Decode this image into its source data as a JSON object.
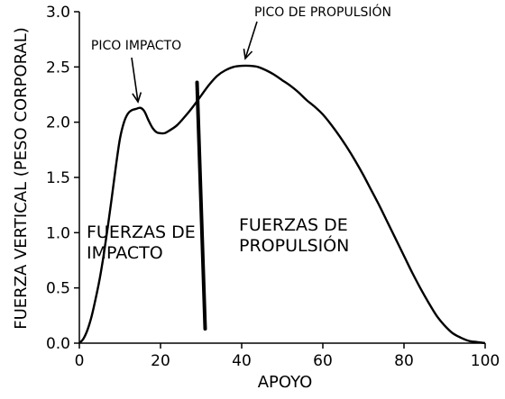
{
  "chart_data": {
    "type": "line",
    "xlabel": "APOYO",
    "ylabel": "FUERZA VERTICAL (PESO CORPORAL)",
    "xlim": [
      0,
      100
    ],
    "ylim": [
      0,
      3.0
    ],
    "x_ticks": [
      "0",
      "20",
      "40",
      "60",
      "80",
      "100"
    ],
    "y_ticks": [
      "0.0",
      "0.5",
      "1.0",
      "1.5",
      "2.0",
      "2.5",
      "3.0"
    ],
    "grid": false,
    "series": [
      {
        "x": [
          0,
          1,
          2,
          3,
          4,
          5,
          6,
          7,
          8,
          9,
          10,
          11,
          12,
          13,
          14,
          15,
          16,
          17,
          18,
          19,
          20,
          21,
          22,
          24,
          26,
          28,
          30,
          32,
          34,
          36,
          38,
          40,
          42,
          44,
          46,
          48,
          50,
          52,
          54,
          56,
          58,
          60,
          62,
          64,
          66,
          68,
          70,
          72,
          74,
          76,
          78,
          80,
          82,
          84,
          86,
          88,
          90,
          92,
          94,
          96,
          98,
          100
        ],
        "y": [
          0.0,
          0.04,
          0.12,
          0.24,
          0.4,
          0.58,
          0.8,
          1.05,
          1.32,
          1.6,
          1.85,
          2.0,
          2.08,
          2.11,
          2.12,
          2.13,
          2.1,
          2.02,
          1.95,
          1.91,
          1.9,
          1.9,
          1.92,
          1.97,
          2.05,
          2.14,
          2.24,
          2.34,
          2.42,
          2.47,
          2.5,
          2.51,
          2.51,
          2.5,
          2.47,
          2.43,
          2.38,
          2.33,
          2.27,
          2.2,
          2.14,
          2.07,
          1.98,
          1.88,
          1.77,
          1.65,
          1.52,
          1.38,
          1.24,
          1.09,
          0.94,
          0.79,
          0.64,
          0.5,
          0.37,
          0.25,
          0.16,
          0.09,
          0.05,
          0.02,
          0.01,
          0.0
        ]
      }
    ],
    "divider": {
      "x": [
        29,
        31
      ],
      "y": [
        2.36,
        0.13
      ]
    },
    "annotations": [
      {
        "text": "PICO IMPACTO",
        "target": [
          14.5,
          2.12
        ]
      },
      {
        "text": "PICO DE PROPULSIÓN",
        "target": [
          41.5,
          2.52
        ]
      }
    ],
    "region_labels": [
      {
        "lines": [
          "FUERZAS DE",
          "IMPACTO"
        ],
        "at": [
          2,
          1.0
        ]
      },
      {
        "lines": [
          "FUERZAS DE",
          "PROPULSIÓN"
        ],
        "at": [
          39,
          1.0
        ]
      }
    ]
  }
}
